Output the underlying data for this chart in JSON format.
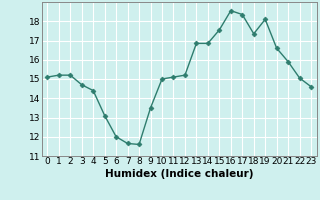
{
  "x": [
    0,
    1,
    2,
    3,
    4,
    5,
    6,
    7,
    8,
    9,
    10,
    11,
    12,
    13,
    14,
    15,
    16,
    17,
    18,
    19,
    20,
    21,
    22,
    23
  ],
  "y": [
    15.1,
    15.2,
    15.2,
    14.7,
    14.4,
    13.1,
    12.0,
    11.65,
    11.6,
    13.5,
    15.0,
    15.1,
    15.2,
    16.85,
    16.85,
    17.55,
    18.55,
    18.35,
    17.35,
    18.1,
    16.6,
    15.9,
    15.05,
    14.6
  ],
  "xlabel": "Humidex (Indice chaleur)",
  "xlim": [
    -0.5,
    23.5
  ],
  "ylim": [
    11,
    19
  ],
  "yticks": [
    11,
    12,
    13,
    14,
    15,
    16,
    17,
    18
  ],
  "xticks": [
    0,
    1,
    2,
    3,
    4,
    5,
    6,
    7,
    8,
    9,
    10,
    11,
    12,
    13,
    14,
    15,
    16,
    17,
    18,
    19,
    20,
    21,
    22,
    23
  ],
  "line_color": "#2e7d6e",
  "marker": "D",
  "marker_size": 2.5,
  "bg_color": "#cff0ee",
  "grid_color": "#ffffff",
  "label_fontsize": 7.5,
  "tick_fontsize": 6.5
}
